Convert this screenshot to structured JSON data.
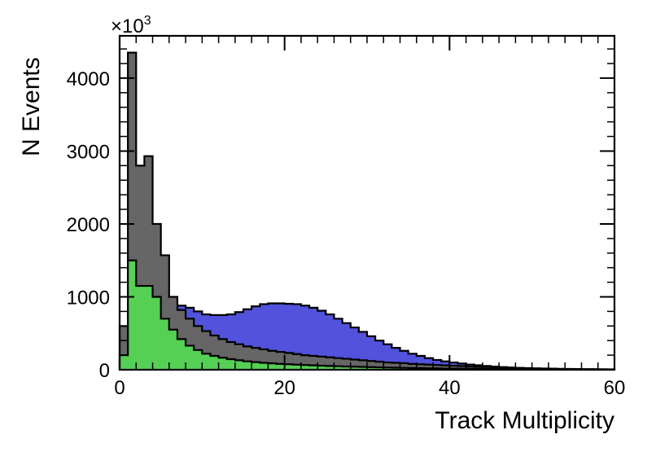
{
  "chart_data": {
    "type": "histogram",
    "x_label": "Track Multiplicity",
    "y_label": "N Events",
    "y_multiplier_base": "×10",
    "y_multiplier_exponent": "3",
    "bins": [
      0,
      1,
      2,
      3,
      4,
      5,
      6,
      7,
      8,
      9,
      10,
      11,
      12,
      13,
      14,
      15,
      16,
      17,
      18,
      19,
      20,
      21,
      22,
      23,
      24,
      25,
      26,
      27,
      28,
      29,
      30,
      31,
      32,
      33,
      34,
      35,
      36,
      37,
      38,
      39,
      40,
      41,
      42,
      43,
      44,
      45,
      46,
      47,
      48,
      49,
      50,
      51,
      52,
      53,
      54,
      55,
      56,
      57,
      58,
      59,
      60
    ],
    "series": [
      {
        "color": "#5252dc",
        "values": [
          100,
          600,
          900,
          1000,
          1000,
          950,
          900,
          880,
          850,
          800,
          760,
          750,
          750,
          760,
          790,
          830,
          870,
          900,
          910,
          910,
          905,
          900,
          880,
          850,
          810,
          760,
          700,
          640,
          580,
          520,
          460,
          400,
          350,
          300,
          260,
          220,
          190,
          160,
          135,
          115,
          100,
          85,
          72,
          62,
          52,
          44,
          37,
          31,
          26,
          22,
          18,
          15,
          12,
          10,
          8,
          7,
          6,
          5,
          4,
          3
        ]
      },
      {
        "color": "#666666",
        "values": [
          600,
          4350,
          2800,
          2930,
          2000,
          1570,
          1000,
          820,
          700,
          600,
          530,
          470,
          420,
          380,
          350,
          320,
          300,
          280,
          260,
          245,
          230,
          215,
          200,
          190,
          180,
          170,
          160,
          150,
          140,
          130,
          120,
          110,
          100,
          95,
          90,
          80,
          75,
          70,
          65,
          60,
          55,
          50,
          45,
          40,
          37,
          33,
          30,
          27,
          24,
          21,
          19,
          17,
          15,
          13,
          11,
          10,
          9,
          8,
          7,
          6
        ]
      },
      {
        "color": "#55d055",
        "values": [
          200,
          1500,
          1150,
          1150,
          1000,
          700,
          550,
          420,
          330,
          270,
          220,
          190,
          165,
          145,
          130,
          115,
          105,
          95,
          88,
          80,
          75,
          70,
          65,
          60,
          56,
          52,
          48,
          45,
          42,
          39,
          36,
          33,
          30,
          28,
          26,
          24,
          22,
          20,
          18,
          16,
          15,
          14,
          13,
          12,
          11,
          10,
          9,
          8,
          7,
          6,
          5,
          5,
          4,
          4,
          3,
          3,
          3,
          2,
          2,
          2
        ]
      }
    ],
    "xlim": [
      0,
      60
    ],
    "xticks": [
      0,
      20,
      40,
      60
    ],
    "ylim": [
      0,
      4580
    ],
    "yticks": [
      0,
      1000,
      2000,
      3000,
      4000
    ]
  }
}
